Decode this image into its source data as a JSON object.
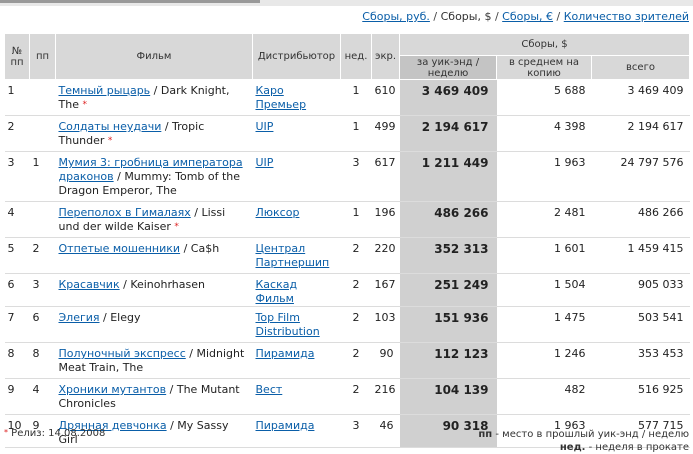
{
  "units_bar": {
    "rub": "Сборы, руб.",
    "usd": "Сборы, $",
    "eur": "Сборы, €",
    "viewers": "Количество зрителей",
    "sep": " / "
  },
  "headers": {
    "no": "№ пп",
    "prev": "пп",
    "film": "Фильм",
    "distributor": "Дистрибьютор",
    "weeks": "нед.",
    "screens": "экр.",
    "gross_group": "Сборы, $",
    "weekend": "за уик-энд / неделю",
    "avg": "в среднем на копию",
    "total": "всего"
  },
  "rows": [
    {
      "no": "1",
      "prev": "",
      "ru": "Темный рыцарь",
      "en": "Dark Knight, The",
      "star": "*",
      "dist": "Каро Премьер",
      "weeks": "1",
      "screens": "610",
      "weekend": "3 469 409",
      "avg": "5 688",
      "total": "3 469 409"
    },
    {
      "no": "2",
      "prev": "",
      "ru": "Солдаты неудачи",
      "en": "Tropic Thunder",
      "star": "*",
      "dist": "UIP",
      "weeks": "1",
      "screens": "499",
      "weekend": "2 194 617",
      "avg": "4 398",
      "total": "2 194 617"
    },
    {
      "no": "3",
      "prev": "1",
      "ru": "Мумия 3: гробница императора драконов",
      "en": "Mummy: Tomb of the Dragon Emperor, The",
      "star": "",
      "dist": "UIP",
      "weeks": "3",
      "screens": "617",
      "weekend": "1 211 449",
      "avg": "1 963",
      "total": "24 797 576"
    },
    {
      "no": "4",
      "prev": "",
      "ru": "Переполох в Гималаях",
      "en": "Lissi und der wilde Kaiser",
      "star": "*",
      "dist": "Люксор",
      "weeks": "1",
      "screens": "196",
      "weekend": "486 266",
      "avg": "2 481",
      "total": "486 266"
    },
    {
      "no": "5",
      "prev": "2",
      "ru": "Отпетые мошенники",
      "en": "Ca$h",
      "star": "",
      "dist": "Централ Партнершип",
      "weeks": "2",
      "screens": "220",
      "weekend": "352 313",
      "avg": "1 601",
      "total": "1 459 415"
    },
    {
      "no": "6",
      "prev": "3",
      "ru": "Красавчик",
      "en": "Keinohrhasen",
      "star": "",
      "dist": "Каскад Фильм",
      "weeks": "2",
      "screens": "167",
      "weekend": "251 249",
      "avg": "1 504",
      "total": "905 033"
    },
    {
      "no": "7",
      "prev": "6",
      "ru": "Элегия",
      "en": "Elegy",
      "star": "",
      "dist": "Top Film Distribution",
      "weeks": "2",
      "screens": "103",
      "weekend": "151 936",
      "avg": "1 475",
      "total": "503 541"
    },
    {
      "no": "8",
      "prev": "8",
      "ru": "Полуночный экспресс",
      "en": "Midnight Meat Train, The",
      "star": "",
      "dist": "Пирамида",
      "weeks": "2",
      "screens": "90",
      "weekend": "112 123",
      "avg": "1 246",
      "total": "353 453"
    },
    {
      "no": "9",
      "prev": "4",
      "ru": "Хроники мутантов",
      "en": "The Mutant Chronicles",
      "star": "",
      "dist": "Вест",
      "weeks": "2",
      "screens": "216",
      "weekend": "104 139",
      "avg": "482",
      "total": "516 925"
    },
    {
      "no": "10",
      "prev": "9",
      "ru": "Дрянная девчонка",
      "en": "My Sassy Girl",
      "star": "",
      "dist": "Пирамида",
      "weeks": "3",
      "screens": "46",
      "weekend": "90 318",
      "avg": "1 963",
      "total": "577 715"
    }
  ],
  "footer": {
    "star": "*",
    "release": " Релиз: 14.08.2008",
    "pp_key": "пп",
    "pp_text": " - место в прошлый уик-энд / неделю",
    "weeks_key": "нед.",
    "weeks_text": " - неделя в прокате"
  }
}
